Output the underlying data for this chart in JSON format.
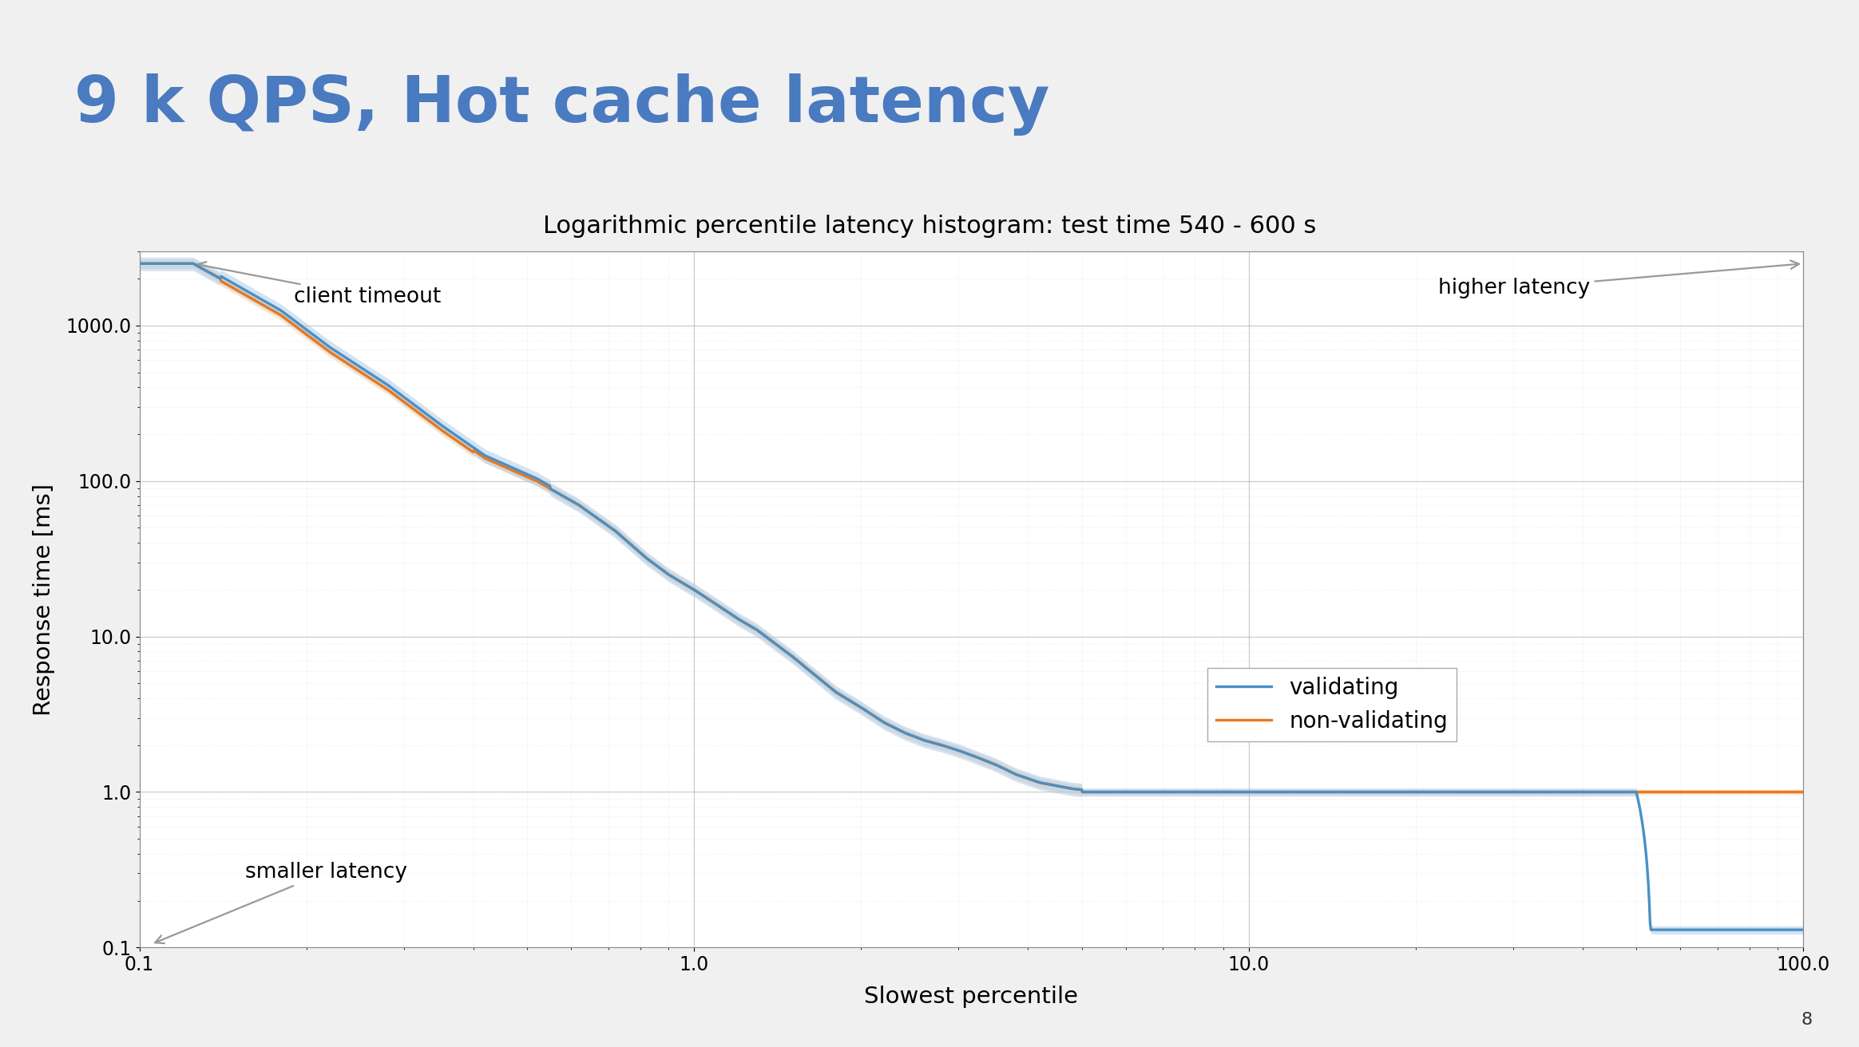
{
  "title_main": "9 k QPS, Hot cache latency",
  "title_sub": "Logarithmic percentile latency histogram: test time 540 - 600 s",
  "xlabel": "Slowest percentile",
  "ylabel": "Response time [ms]",
  "xlim": [
    0.1,
    100.0
  ],
  "ylim": [
    0.1,
    3000.0
  ],
  "bg_color": "#f0f0f0",
  "plot_bg_color": "#ffffff",
  "grid_major_color": "#aaaaaa",
  "grid_minor_color": "#cccccc",
  "validating_color": "#4a90c4",
  "nonvalidating_color": "#e87820",
  "validating_fill_color": "#a8c8e8",
  "nonvalidating_fill_color": "#f0c898",
  "legend_labels": [
    "validating",
    "non-validating"
  ],
  "annotation_client_timeout": "client timeout",
  "annotation_higher_latency": "higher latency",
  "annotation_smaller_latency": "smaller latency",
  "slide_number": "8",
  "title_color": "#4a7abf",
  "header_bar_color": "#5080aa",
  "title_fontsize": 58,
  "subtitle_fontsize": 22,
  "tick_fontsize": 17,
  "label_fontsize": 21,
  "legend_fontsize": 20,
  "annot_fontsize": 19
}
